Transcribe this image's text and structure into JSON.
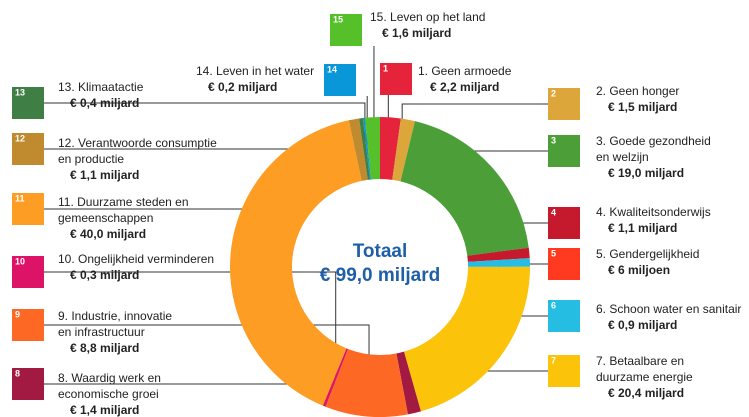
{
  "chart_data": {
    "type": "pie",
    "center_title": "Totaal",
    "center_value": "€ 99,0 miljard",
    "goals": [
      1,
      2,
      3,
      4,
      5,
      6,
      7,
      8,
      9,
      10,
      11,
      12,
      13,
      14,
      15
    ],
    "labels": [
      [
        "1. Geen armoede"
      ],
      [
        "2. Geen honger"
      ],
      [
        "3. Goede gezondheid",
        "en welzijn"
      ],
      [
        "4. Kwaliteitsonderwijs"
      ],
      [
        "5. Gendergelijkheid"
      ],
      [
        "6. Schoon water en sanitair"
      ],
      [
        "7. Betaalbare en",
        "duurzame energie"
      ],
      [
        "8. Waardig werk en",
        "economische groei"
      ],
      [
        "9. Industrie, innovatie",
        "en infrastructuur"
      ],
      [
        "10. Ongelijkheid verminderen"
      ],
      [
        "11. Duurzame steden en",
        "gemeenschappen"
      ],
      [
        "12. Verantwoorde consumptie",
        "en productie"
      ],
      [
        "13. Klimaatactie"
      ],
      [
        "14. Leven in het water"
      ],
      [
        "15. Leven op het land"
      ]
    ],
    "values": [
      2.2,
      1.5,
      19.0,
      1.1,
      0.006,
      0.9,
      20.4,
      1.4,
      8.8,
      0.3,
      40.0,
      1.1,
      0.4,
      0.2,
      1.6
    ],
    "value_labels": [
      "€ 2,2 miljard",
      "€ 1,5 miljard",
      "€ 19,0 miljard",
      "€ 1,1 miljard",
      "€ 6 miljoen",
      "€ 0,9 miljard",
      "€ 20,4 miljard",
      "€ 1,4 miljard",
      "€ 8,8 miljard",
      "€ 0,3 miljard",
      "€ 40,0 miljard",
      "€ 1,1 miljard",
      "€ 0,4 miljard",
      "€ 0,2 miljard",
      "€ 1,6 miljard"
    ],
    "colors": [
      "#e5243b",
      "#dda63a",
      "#4c9f38",
      "#c5192d",
      "#ff3a21",
      "#26bde2",
      "#fcc30b",
      "#a21942",
      "#fd6925",
      "#dd1367",
      "#fd9d24",
      "#bf8b2e",
      "#3f7e44",
      "#0a97d9",
      "#56c02b"
    ]
  }
}
